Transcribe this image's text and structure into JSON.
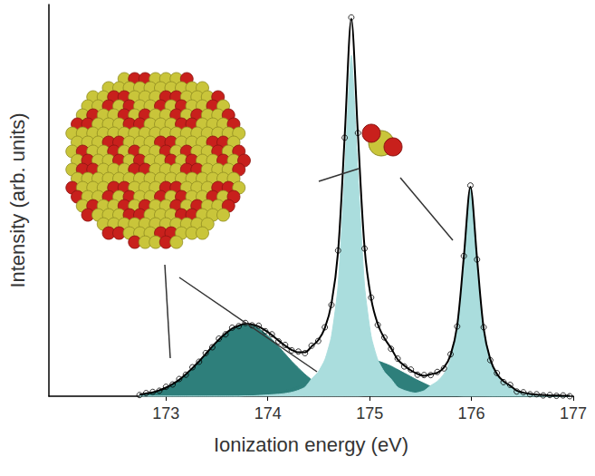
{
  "chart_data": {
    "type": "line",
    "x_label": "Ionization energy (eV)",
    "y_label": "Intensity (arb. units)",
    "xlim": [
      171.85,
      177.0
    ],
    "xticks": [
      173,
      174,
      175,
      176,
      177
    ],
    "ylim": [
      0,
      1
    ],
    "tick_labels": "x",
    "grid": false,
    "x": [
      172.74,
      172.805,
      172.87,
      172.935,
      173,
      173.065,
      173.13,
      173.195,
      173.26,
      173.325,
      173.39,
      173.455,
      173.52,
      173.585,
      173.65,
      173.715,
      173.78,
      173.845,
      173.91,
      173.975,
      174.04,
      174.105,
      174.17,
      174.235,
      174.3,
      174.365,
      174.43,
      174.495,
      174.56,
      174.625,
      174.69,
      174.755,
      174.82,
      174.885,
      174.95,
      175.015,
      175.08,
      175.145,
      175.21,
      175.275,
      175.34,
      175.405,
      175.47,
      175.535,
      175.6,
      175.665,
      175.73,
      175.795,
      175.86,
      175.925,
      175.99,
      176.055,
      176.12,
      176.185,
      176.25,
      176.315,
      176.38,
      176.445,
      176.51,
      176.575,
      176.64,
      176.705,
      176.77,
      176.835,
      176.9,
      176.965
    ],
    "series": [
      {
        "type": "area",
        "color": "#2e7f7b",
        "values": [
          0.004,
          0.007,
          0.01,
          0.015,
          0.022,
          0.031,
          0.042,
          0.056,
          0.072,
          0.089,
          0.108,
          0.127,
          0.145,
          0.16,
          0.173,
          0.18,
          0.183,
          0.18,
          0.173,
          0.16,
          0.145,
          0.127,
          0.108,
          0.089,
          0.072,
          0.056,
          0.042,
          0.031,
          0.022,
          0.015,
          0.01,
          0.007,
          0.004,
          0.003,
          0.002,
          0.001,
          0,
          0,
          0,
          0,
          0,
          0,
          0,
          0,
          0,
          0,
          0,
          0,
          0,
          0,
          0,
          0,
          0,
          0,
          0,
          0,
          0,
          0,
          0,
          0,
          0,
          0,
          0,
          0,
          0,
          0
        ]
      },
      {
        "type": "area",
        "color": "#2e7f7b",
        "values": [
          0,
          0,
          0,
          0,
          0,
          0,
          0,
          0,
          0,
          0,
          0,
          0,
          0,
          0,
          0,
          0,
          0.001,
          0.002,
          0.003,
          0.005,
          0.007,
          0.01,
          0.014,
          0.019,
          0.025,
          0.033,
          0.041,
          0.05,
          0.059,
          0.068,
          0.077,
          0.084,
          0.09,
          0.094,
          0.095,
          0.094,
          0.09,
          0.084,
          0.077,
          0.068,
          0.059,
          0.05,
          0.041,
          0.033,
          0.025,
          0.019,
          0.014,
          0.01,
          0.007,
          0.005,
          0.003,
          0.002,
          0.001,
          0,
          0,
          0,
          0,
          0,
          0,
          0,
          0,
          0,
          0,
          0,
          0,
          0
        ]
      },
      {
        "type": "area",
        "color": "#aadddd",
        "values": [
          0,
          0,
          0,
          0,
          0,
          0,
          0,
          0,
          0,
          0,
          0,
          0,
          0,
          0,
          0,
          0,
          0.001,
          0.001,
          0.002,
          0.003,
          0.004,
          0.005,
          0.007,
          0.01,
          0.015,
          0.023,
          0.044,
          0.062,
          0.093,
          0.153,
          0.282,
          0.572,
          0.87,
          0.572,
          0.282,
          0.153,
          0.093,
          0.062,
          0.044,
          0.023,
          0.015,
          0.01,
          0.007,
          0.005,
          0.004,
          0.003,
          0.002,
          0.001,
          0.001,
          0,
          0,
          0,
          0,
          0,
          0,
          0,
          0,
          0,
          0,
          0,
          0,
          0,
          0,
          0,
          0,
          0
        ]
      },
      {
        "type": "area",
        "color": "#aadddd",
        "values": [
          0,
          0,
          0,
          0,
          0,
          0,
          0,
          0,
          0,
          0,
          0,
          0,
          0,
          0,
          0,
          0,
          0,
          0,
          0,
          0,
          0,
          0,
          0,
          0,
          0,
          0,
          0,
          0,
          0,
          0,
          0,
          0,
          0,
          0,
          0.001,
          0.001,
          0.001,
          0.002,
          0.002,
          0.003,
          0.004,
          0.006,
          0.009,
          0.014,
          0.027,
          0.038,
          0.057,
          0.094,
          0.172,
          0.35,
          0.532,
          0.35,
          0.172,
          0.094,
          0.057,
          0.038,
          0.027,
          0.014,
          0.009,
          0.006,
          0.004,
          0.003,
          0.002,
          0.002,
          0.001,
          0.001
        ]
      },
      {
        "type": "line",
        "color": "#000000",
        "line_style": "solid",
        "values": [
          0.004,
          0.007,
          0.01,
          0.015,
          0.022,
          0.031,
          0.042,
          0.056,
          0.072,
          0.089,
          0.108,
          0.127,
          0.145,
          0.16,
          0.173,
          0.18,
          0.185,
          0.183,
          0.178,
          0.168,
          0.156,
          0.142,
          0.129,
          0.118,
          0.112,
          0.112,
          0.127,
          0.143,
          0.174,
          0.236,
          0.369,
          0.663,
          0.964,
          0.669,
          0.38,
          0.249,
          0.184,
          0.148,
          0.123,
          0.094,
          0.078,
          0.066,
          0.057,
          0.052,
          0.056,
          0.06,
          0.073,
          0.105,
          0.18,
          0.355,
          0.535,
          0.352,
          0.173,
          0.094,
          0.057,
          0.038,
          0.027,
          0.014,
          0.009,
          0.006,
          0.004,
          0.003,
          0.002,
          0.002,
          0.001,
          0.001
        ]
      },
      {
        "type": "scatter",
        "color": "#000000",
        "marker": "open_circle",
        "values": [
          0.003,
          0.008,
          0.011,
          0.014,
          0.024,
          0.03,
          0.044,
          0.055,
          0.074,
          0.088,
          0.11,
          0.125,
          0.147,
          0.158,
          0.175,
          0.179,
          0.187,
          0.181,
          0.18,
          0.166,
          0.158,
          0.14,
          0.131,
          0.117,
          0.114,
          0.11,
          0.129,
          0.141,
          0.176,
          0.233,
          0.372,
          0.66,
          0.967,
          0.672,
          0.377,
          0.252,
          0.182,
          0.15,
          0.121,
          0.096,
          0.076,
          0.068,
          0.055,
          0.054,
          0.054,
          0.062,
          0.071,
          0.107,
          0.178,
          0.358,
          0.538,
          0.349,
          0.176,
          0.092,
          0.059,
          0.036,
          0.029,
          0.012,
          0.01,
          0.005,
          0.005,
          0.002,
          0.003,
          0.001,
          0.002,
          0.0
        ]
      }
    ]
  }
}
